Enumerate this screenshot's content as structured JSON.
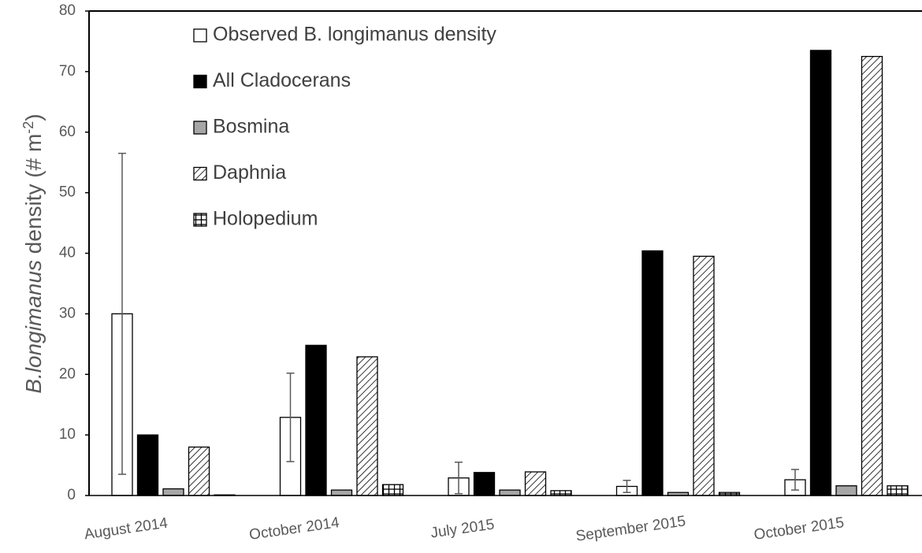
{
  "chart_data": {
    "type": "bar",
    "y_label": {
      "italic": "B.longimanus",
      "text": " density (# m",
      "superscript": "-2",
      "end": ")"
    },
    "categories": [
      "August 2014",
      "October 2014",
      "July 2015",
      "September 2015",
      "October 2015"
    ],
    "series": [
      {
        "name": "Observed B. longimanus density",
        "color": "#ffffff",
        "pattern": "solid",
        "values": [
          30,
          12.9,
          2.9,
          1.5,
          2.6
        ],
        "errors": [
          26.5,
          7.3,
          2.6,
          1.0,
          1.7
        ]
      },
      {
        "name": "All Cladocerans",
        "color": "#000000",
        "pattern": "solid",
        "values": [
          10,
          24.8,
          3.8,
          40.4,
          73.5
        ]
      },
      {
        "name": "Bosmina",
        "color": "#a6a6a6",
        "pattern": "solid",
        "values": [
          1.1,
          0.9,
          0.9,
          0.5,
          1.6
        ]
      },
      {
        "name": "Daphnia",
        "color": "#ffffff",
        "pattern": "diagonal",
        "values": [
          8,
          22.9,
          3.9,
          39.5,
          72.5
        ]
      },
      {
        "name": "Holopedium",
        "color": "#ffffff",
        "pattern": "grid",
        "values": [
          0.1,
          1.8,
          0.8,
          0.5,
          1.6
        ]
      }
    ],
    "ylim": [
      0,
      80
    ],
    "yticks": [
      0,
      10,
      20,
      30,
      40,
      50,
      60,
      70,
      80
    ],
    "legend": "top-left"
  }
}
